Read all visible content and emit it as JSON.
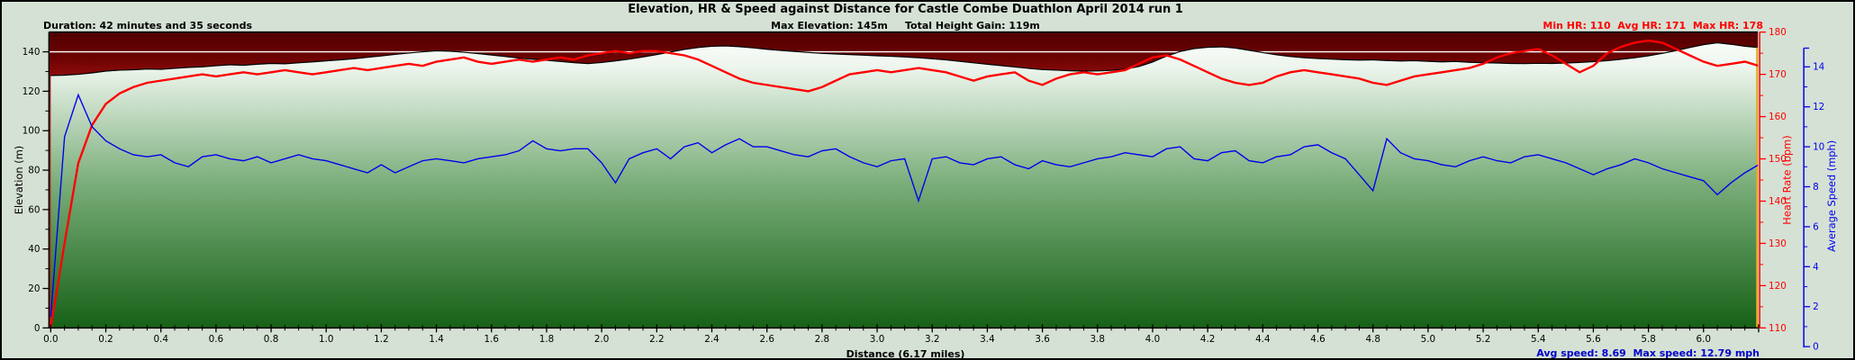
{
  "header": {
    "title": "Elevation, HR & Speed against Distance for Castle Combe Duathlon April 2014 run 1",
    "duration": "Duration: 42 minutes and 35 seconds",
    "elevation_stats": "Max Elevation: 145m     Total Height Gain: 119m",
    "hr_stats": "Min HR: 110  Avg HR: 171  Max HR: 178"
  },
  "footer": {
    "x_axis_label": "Distance (6.17 miles)",
    "speed_stats": "Avg speed: 8.69  Max speed: 12.79 mph"
  },
  "colors": {
    "page_bg": "#d5e1d4",
    "plot_bg_top": "#500000",
    "plot_bg_mid": "#9a0e0e",
    "plot_bg_low": "#c01818",
    "elev_fill_top": "#fdfffd",
    "elev_fill_mid": "#78ac78",
    "elev_fill_bottom": "#176117",
    "elev_outline": "#000000",
    "hr_line": "#ff0000",
    "speed_line": "#0000ee",
    "gridline_140": "#ffffff",
    "end_cursor": "#e8a820",
    "axis_black": "#000000"
  },
  "chart_data": {
    "type": "line",
    "title": "Elevation, HR & Speed against Distance for Castle Combe Duathlon April 2014 run 1",
    "x_unit": "miles",
    "x_start": 0,
    "x_step": 0.05,
    "total_distance_miles": 6.17,
    "duration": "42 minutes and 35 seconds",
    "max_elevation_m": 145,
    "total_height_gain_m": 119,
    "min_hr": 110,
    "avg_hr": 171,
    "max_hr": 178,
    "avg_speed_mph": 8.69,
    "max_speed_mph": 12.79,
    "axes": {
      "distance": {
        "label": "Distance (6.17 miles)",
        "min": 0,
        "max": 6.2,
        "tick_step": 0.2,
        "minor_step": 0.05
      },
      "elevation": {
        "label": "Elevation (m)",
        "min": 0,
        "max": 150,
        "label_max": 140,
        "tick_step": 20,
        "minor_step": 10,
        "gridline_at": 140,
        "side": "left",
        "color": "#000000"
      },
      "heart_rate": {
        "label": "Heart Rate (bpm)",
        "min": 110,
        "max": 180,
        "tick_step": 10,
        "minor_step": 5,
        "side": "right",
        "color": "#ff0000"
      },
      "speed": {
        "label": "Average Speed (mph)",
        "min": 0,
        "max": 14,
        "tick_step": 2,
        "minor_step": 1,
        "side": "far-right",
        "color": "#0000ee"
      }
    },
    "series": [
      {
        "name": "Elevation (m)",
        "style": "area-green-gradient",
        "values": [
          128.0,
          128.2,
          128.6,
          129.3,
          130.2,
          130.7,
          130.9,
          131.3,
          131.1,
          131.6,
          132.1,
          132.4,
          132.9,
          133.4,
          133.2,
          133.7,
          134.1,
          133.9,
          134.4,
          134.9,
          135.4,
          135.9,
          136.5,
          137.2,
          137.9,
          138.7,
          139.4,
          140.0,
          140.5,
          140.3,
          139.8,
          139.1,
          138.4,
          137.6,
          136.8,
          136.2,
          135.7,
          135.1,
          134.5,
          134.0,
          134.6,
          135.4,
          136.3,
          137.4,
          138.6,
          139.9,
          141.2,
          142.2,
          142.8,
          143.0,
          142.6,
          142.0,
          141.3,
          140.7,
          140.2,
          139.7,
          139.2,
          138.9,
          138.6,
          138.3,
          138.0,
          137.7,
          137.4,
          137.0,
          136.5,
          135.9,
          135.2,
          134.4,
          133.7,
          133.0,
          132.3,
          131.6,
          131.0,
          130.7,
          130.4,
          130.2,
          130.3,
          130.6,
          131.2,
          132.5,
          134.8,
          137.8,
          140.2,
          141.6,
          142.3,
          142.5,
          141.9,
          140.8,
          139.6,
          138.5,
          137.6,
          137.0,
          136.6,
          136.3,
          136.0,
          135.8,
          135.9,
          135.6,
          135.3,
          135.5,
          135.2,
          134.9,
          135.1,
          134.7,
          134.5,
          134.3,
          134.1,
          134.0,
          134.2,
          134.1,
          134.3,
          134.6,
          135.0,
          135.5,
          136.2,
          137.0,
          138.0,
          139.2,
          140.6,
          142.2,
          143.6,
          144.6,
          143.8,
          142.8,
          142.2
        ]
      },
      {
        "name": "Heart Rate (bpm)",
        "style": "line-red",
        "values": [
          110,
          130,
          149,
          158,
          163,
          165.5,
          167,
          168,
          168.5,
          169,
          169.5,
          170,
          169.5,
          170,
          170.5,
          170,
          170.5,
          171,
          170.5,
          170,
          170.5,
          171,
          171.5,
          171,
          171.5,
          172,
          172.5,
          172,
          173,
          173.5,
          174,
          173,
          172.5,
          173,
          173.5,
          173,
          173.5,
          174,
          173.5,
          174.5,
          175,
          175.5,
          175,
          175.5,
          175.5,
          175,
          174.5,
          173.5,
          172,
          170.5,
          169,
          168,
          167.5,
          167,
          166.5,
          166,
          167,
          168.5,
          170,
          170.5,
          171,
          170.5,
          171,
          171.5,
          171,
          170.5,
          169.5,
          168.5,
          169.5,
          170,
          170.5,
          168.5,
          167.5,
          169,
          170,
          170.5,
          170,
          170.5,
          171,
          172.5,
          174,
          174.5,
          173.5,
          172,
          170.5,
          169,
          168,
          167.5,
          168,
          169.5,
          170.5,
          171,
          170.5,
          170,
          169.5,
          169,
          168,
          167.5,
          168.5,
          169.5,
          170,
          170.5,
          171,
          171.5,
          172.5,
          174,
          175,
          175.5,
          176,
          174.5,
          172.5,
          170.5,
          172,
          175,
          176.5,
          177.5,
          178,
          177.5,
          176,
          174.5,
          173,
          172,
          172.5,
          173,
          172
        ]
      },
      {
        "name": "Average Speed (mph)",
        "style": "line-blue",
        "values": [
          1.5,
          10.5,
          12.6,
          11.0,
          10.3,
          9.9,
          9.6,
          9.5,
          9.6,
          9.2,
          9.0,
          9.5,
          9.6,
          9.4,
          9.3,
          9.5,
          9.2,
          9.4,
          9.6,
          9.4,
          9.3,
          9.1,
          8.9,
          8.7,
          9.1,
          8.7,
          9.0,
          9.3,
          9.4,
          9.3,
          9.2,
          9.4,
          9.5,
          9.6,
          9.8,
          10.3,
          9.9,
          9.8,
          9.9,
          9.9,
          9.2,
          8.2,
          9.4,
          9.7,
          9.9,
          9.4,
          10.0,
          10.2,
          9.7,
          10.1,
          10.4,
          10.0,
          10.0,
          9.8,
          9.6,
          9.5,
          9.8,
          9.9,
          9.5,
          9.2,
          9.0,
          9.3,
          9.4,
          7.3,
          9.4,
          9.5,
          9.2,
          9.1,
          9.4,
          9.5,
          9.1,
          8.9,
          9.3,
          9.1,
          9.0,
          9.2,
          9.4,
          9.5,
          9.7,
          9.6,
          9.5,
          9.9,
          10.0,
          9.4,
          9.3,
          9.7,
          9.8,
          9.3,
          9.2,
          9.5,
          9.6,
          10.0,
          10.1,
          9.7,
          9.4,
          8.6,
          7.8,
          10.4,
          9.7,
          9.4,
          9.3,
          9.1,
          9.0,
          9.3,
          9.5,
          9.3,
          9.2,
          9.5,
          9.6,
          9.4,
          9.2,
          8.9,
          8.6,
          8.9,
          9.1,
          9.4,
          9.2,
          8.9,
          8.7,
          8.5,
          8.3,
          7.6,
          8.2,
          8.7,
          9.1
        ]
      }
    ]
  }
}
